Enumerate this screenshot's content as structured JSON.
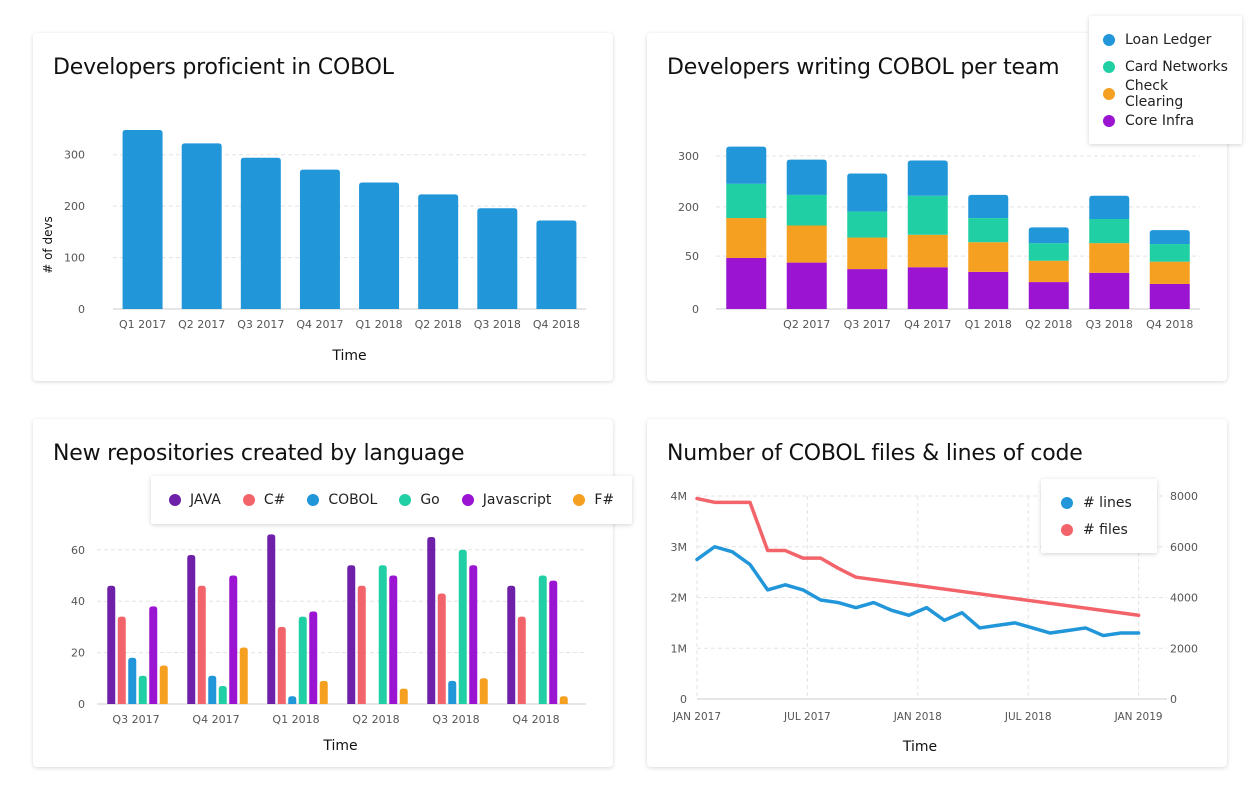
{
  "colors": {
    "blue": "#2196d9",
    "teal": "#21cfa4",
    "orange": "#f5a020",
    "purple": "#9a14d2",
    "java": "#6f20a8",
    "csharp": "#f2646a",
    "cobol": "#2196d9",
    "go": "#21cfa4",
    "javascript": "#9a14d2",
    "fsharp": "#f5a020",
    "lines": "#2196d9",
    "files": "#f2646a",
    "grid": "#e3e3e3"
  },
  "chart_data": [
    {
      "id": "proficient",
      "type": "bar",
      "title": "Developers proficient in COBOL",
      "xlabel": "Time",
      "ylabel": "# of devs",
      "ylim": [
        0,
        350
      ],
      "yticks": [
        0,
        100,
        200,
        300
      ],
      "categories": [
        "Q1 2017",
        "Q2 2017",
        "Q3 2017",
        "Q4 2017",
        "Q1 2018",
        "Q2 2018",
        "Q3 2018",
        "Q4 2018"
      ],
      "values": [
        348,
        322,
        294,
        271,
        246,
        223,
        196,
        172
      ],
      "grid": true
    },
    {
      "id": "per_team",
      "type": "bar",
      "stacked": true,
      "title": "Developers writing COBOL per team",
      "ytick_labels": [
        "0",
        "50",
        "200",
        "300"
      ],
      "categories": [
        "",
        "Q2 2017",
        "Q3 2017",
        "Q4 2017",
        "Q1 2018",
        "Q2 2018",
        "Q3 2018",
        "Q4 2018"
      ],
      "series": [
        {
          "name": "Core Infra",
          "values": [
            55,
            50,
            43,
            45,
            40,
            29,
            39,
            27
          ]
        },
        {
          "name": "Check Clearing",
          "values": [
            43,
            40,
            34,
            35,
            32,
            23,
            32,
            24
          ]
        },
        {
          "name": "Card Networks",
          "values": [
            37,
            33,
            28,
            42,
            26,
            19,
            26,
            19
          ]
        },
        {
          "name": "Loan Ledger",
          "values": [
            40,
            38,
            41,
            38,
            25,
            17,
            25,
            15
          ]
        }
      ],
      "legend": [
        "Loan Ledger",
        "Card Networks",
        "Check Clearing",
        "Core Infra"
      ],
      "legend_position": "top-right",
      "grid": true
    },
    {
      "id": "repos",
      "type": "bar",
      "title": "New repositories created by language",
      "xlabel": "Time",
      "ylim": [
        0,
        70
      ],
      "yticks": [
        0,
        20,
        40,
        60
      ],
      "categories": [
        "Q3 2017",
        "Q4 2017",
        "Q1 2018",
        "Q2 2018",
        "Q3 2018",
        "Q4 2018"
      ],
      "series": [
        {
          "name": "JAVA",
          "values": [
            46,
            58,
            66,
            54,
            65,
            46
          ]
        },
        {
          "name": "C#",
          "values": [
            34,
            46,
            30,
            46,
            43,
            34
          ]
        },
        {
          "name": "COBOL",
          "values": [
            18,
            11,
            3,
            0,
            9,
            0
          ]
        },
        {
          "name": "Go",
          "values": [
            11,
            7,
            34,
            54,
            60,
            50
          ]
        },
        {
          "name": "Javascript",
          "values": [
            38,
            50,
            36,
            50,
            54,
            48
          ]
        },
        {
          "name": "F#",
          "values": [
            15,
            22,
            9,
            6,
            10,
            3
          ]
        }
      ],
      "legend_position": "top",
      "grid": true
    },
    {
      "id": "files_lines",
      "type": "line",
      "title": "Number of COBOL files & lines of code",
      "xlabel": "Time",
      "x_tick_labels": [
        "JAN 2017",
        "JUL 2017",
        "JAN 2018",
        "JUL 2018",
        "JAN 2019"
      ],
      "xlim": [
        0,
        25
      ],
      "ylim_left": [
        0,
        4000000
      ],
      "yticks_left": [
        "0",
        "1M",
        "2M",
        "3M",
        "4M"
      ],
      "ylim_right": [
        0,
        8000
      ],
      "yticks_right": [
        "0",
        "2000",
        "4000",
        "6000",
        "8000"
      ],
      "series": [
        {
          "name": "# lines",
          "axis": "left",
          "x": [
            0,
            1,
            2,
            3,
            4,
            5,
            6,
            7,
            8,
            9,
            10,
            11,
            12,
            13,
            14,
            15,
            16,
            17,
            18,
            19,
            20,
            21,
            22,
            23,
            24,
            25
          ],
          "y": [
            2750000,
            3000000,
            2900000,
            2650000,
            2150000,
            2250000,
            2150000,
            1950000,
            1900000,
            1800000,
            1900000,
            1750000,
            1650000,
            1800000,
            1550000,
            1700000,
            1400000,
            1450000,
            1500000,
            1400000,
            1300000,
            1350000,
            1400000,
            1250000,
            1300000,
            1300000
          ]
        },
        {
          "name": "# files",
          "axis": "right",
          "x": [
            0,
            1,
            2,
            3,
            4,
            5,
            6,
            7,
            8,
            9,
            25
          ],
          "y": [
            7900,
            7750,
            7750,
            7750,
            5850,
            5850,
            5550,
            5550,
            5150,
            4800,
            3300
          ]
        }
      ],
      "legend": [
        "# lines",
        "# files"
      ],
      "legend_position": "top-right",
      "grid": true
    }
  ]
}
